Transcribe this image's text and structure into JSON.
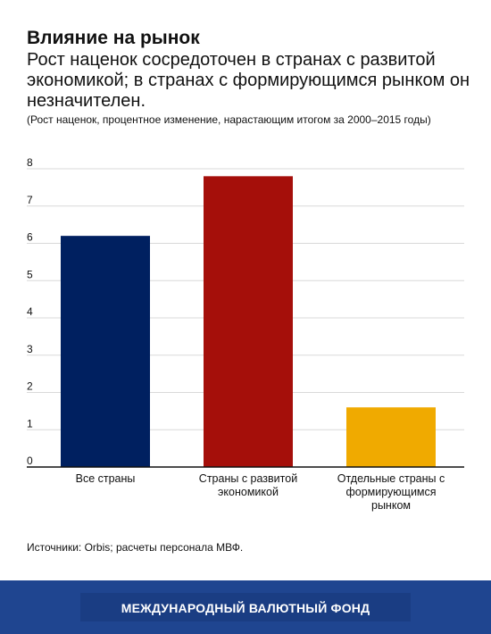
{
  "header": {
    "title": "Влияние на рынок",
    "subtitle": "Рост наценок сосредоточен в странах с развитой экономикой; в странах с формирующимся рынком он незначителен.",
    "note": "(Рост наценок, процентное изменение, нарастающим итогом за 2000–2015 годы)"
  },
  "source": "Источники: Orbis; расчеты персонала МВФ.",
  "footer": {
    "organization": "МЕЖДУНАРОДНЫЙ ВАЛЮТНЫЙ ФОНД"
  },
  "chart_data": {
    "type": "bar",
    "categories": [
      [
        "Все страны"
      ],
      [
        "Страны с развитой",
        "экономикой"
      ],
      [
        "Отдельные страны с",
        "формирующимся",
        "рынком"
      ]
    ],
    "values": [
      6.2,
      7.8,
      1.6
    ],
    "colors": [
      "#002060",
      "#a50f0a",
      "#f0aa00"
    ],
    "ylim": [
      0,
      8
    ],
    "yticks": [
      0,
      1,
      2,
      3,
      4,
      5,
      6,
      7,
      8
    ],
    "grid": true
  }
}
